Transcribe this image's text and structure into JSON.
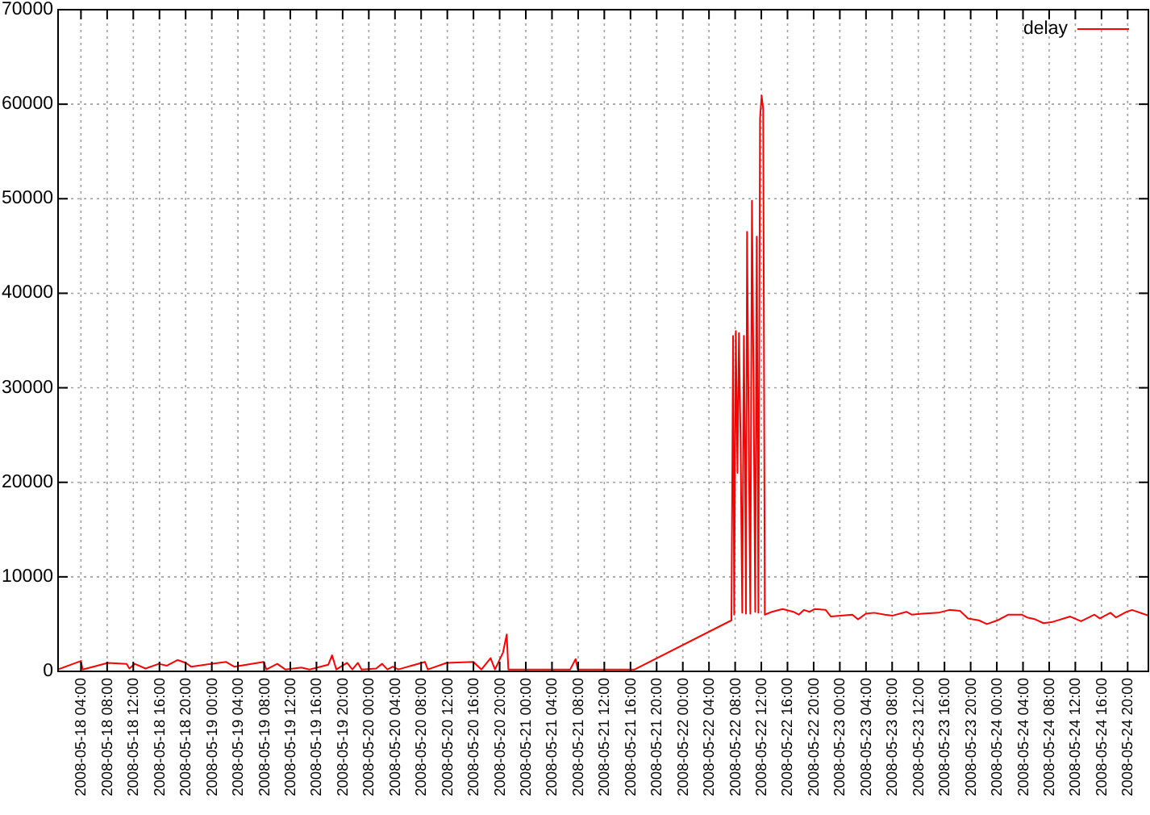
{
  "chart_data": {
    "type": "line",
    "x": [
      "2008-05-18T00:30",
      "2008-05-18T04:00",
      "2008-05-18T04:15",
      "2008-05-18T08:07",
      "2008-05-18T10:59",
      "2008-05-18T11:24",
      "2008-05-18T12:13",
      "2008-05-18T13:52",
      "2008-05-18T15:55",
      "2008-05-18T17:08",
      "2008-05-18T18:47",
      "2008-05-18T20:02",
      "2008-05-18T20:50",
      "2008-05-19T02:11",
      "2008-05-19T03:25",
      "2008-05-19T07:56",
      "2008-05-19T08:21",
      "2008-05-19T10:00",
      "2008-05-19T11:14",
      "2008-05-19T13:42",
      "2008-05-19T14:56",
      "2008-05-19T17:48",
      "2008-05-19T18:23",
      "2008-05-19T19:02",
      "2008-05-19T20:41",
      "2008-05-19T21:29",
      "2008-05-19T22:20",
      "2008-05-19T22:54",
      "2008-05-20T01:07",
      "2008-05-20T02:02",
      "2008-05-20T02:50",
      "2008-05-20T03:40",
      "2008-05-20T04:30",
      "2008-05-20T08:35",
      "2008-05-20T09:01",
      "2008-05-20T11:53",
      "2008-05-20T15:59",
      "2008-05-20T17:13",
      "2008-05-20T18:37",
      "2008-05-20T19:17",
      "2008-05-20T20:31",
      "2008-05-20T21:05",
      "2008-05-20T21:20",
      "2008-05-21T01:02",
      "2008-05-21T06:47",
      "2008-05-21T07:37",
      "2008-05-21T07:56",
      "2008-05-21T12:08",
      "2008-05-21T16:38",
      "2008-05-22T07:26",
      "2008-05-22T07:41",
      "2008-05-22T07:51",
      "2008-05-22T08:06",
      "2008-05-22T08:21",
      "2008-05-22T08:35",
      "2008-05-22T08:50",
      "2008-05-22T09:05",
      "2008-05-22T09:20",
      "2008-05-22T09:30",
      "2008-05-22T09:39",
      "2008-05-22T09:49",
      "2008-05-22T10:04",
      "2008-05-22T10:19",
      "2008-05-22T10:34",
      "2008-05-22T10:49",
      "2008-05-22T11:04",
      "2008-05-22T11:18",
      "2008-05-22T11:33",
      "2008-05-22T11:48",
      "2008-05-22T12:03",
      "2008-05-22T12:17",
      "2008-05-22T12:32",
      "2008-05-22T13:36",
      "2008-05-22T15:15",
      "2008-05-22T16:54",
      "2008-05-22T17:43",
      "2008-05-22T18:32",
      "2008-05-22T19:22",
      "2008-05-22T20:11",
      "2008-05-22T21:50",
      "2008-05-22T22:38",
      "2008-05-23T01:55",
      "2008-05-23T02:46",
      "2008-05-23T03:59",
      "2008-05-23T05:14",
      "2008-05-23T06:52",
      "2008-05-23T08:05",
      "2008-05-23T10:10",
      "2008-05-23T10:59",
      "2008-05-23T12:38",
      "2008-05-23T15:05",
      "2008-05-23T16:43",
      "2008-05-23T18:22",
      "2008-05-23T19:36",
      "2008-05-23T21:15",
      "2008-05-23T22:29",
      "2008-05-24T00:07",
      "2008-05-24T01:46",
      "2008-05-24T03:49",
      "2008-05-24T04:39",
      "2008-05-24T05:53",
      "2008-05-24T07:07",
      "2008-05-24T08:21",
      "2008-05-24T11:13",
      "2008-05-24T12:52",
      "2008-05-24T14:55",
      "2008-05-24T15:44",
      "2008-05-24T17:22",
      "2008-05-24T18:13",
      "2008-05-24T19:50",
      "2008-05-24T20:40",
      "2008-05-24T22:18",
      "2008-05-24T23:10"
    ],
    "series": [
      {
        "name": "delay",
        "color": "#ff0000",
        "values": [
          200,
          1100,
          200,
          900,
          800,
          300,
          800,
          300,
          800,
          600,
          1200,
          900,
          500,
          1000,
          500,
          1000,
          200,
          800,
          200,
          400,
          200,
          700,
          1700,
          200,
          900,
          200,
          900,
          200,
          300,
          800,
          200,
          500,
          200,
          1000,
          200,
          900,
          1000,
          200,
          1400,
          200,
          2000,
          3900,
          200,
          200,
          200,
          1300,
          200,
          200,
          200,
          5400,
          35500,
          6000,
          36000,
          21000,
          35800,
          24000,
          6200,
          35500,
          23000,
          6100,
          46500,
          26000,
          6100,
          49800,
          30000,
          6300,
          46000,
          6200,
          58500,
          60900,
          59500,
          6000,
          6300,
          6600,
          6300,
          6000,
          6500,
          6300,
          6600,
          6500,
          5800,
          6000,
          5500,
          6100,
          6200,
          6000,
          5900,
          6300,
          6000,
          6100,
          6200,
          6500,
          6400,
          5600,
          5400,
          5000,
          5400,
          6000,
          6000,
          5700,
          5500,
          5100,
          5200,
          5800,
          5300,
          6000,
          5600,
          6200,
          5700,
          6300,
          6500,
          6100,
          5900
        ]
      }
    ],
    "xlim": [
      "2008-05-18T00:30",
      "2008-05-24T23:10"
    ],
    "xticks": [
      {
        "value": "2008-05-18T04:00",
        "label": "2008-05-18 04:00"
      },
      {
        "value": "2008-05-18T08:00",
        "label": "2008-05-18 08:00"
      },
      {
        "value": "2008-05-18T12:00",
        "label": "2008-05-18 12:00"
      },
      {
        "value": "2008-05-18T16:00",
        "label": "2008-05-18 16:00"
      },
      {
        "value": "2008-05-18T20:00",
        "label": "2008-05-18 20:00"
      },
      {
        "value": "2008-05-19T00:00",
        "label": "2008-05-19 00:00"
      },
      {
        "value": "2008-05-19T04:00",
        "label": "2008-05-19 04:00"
      },
      {
        "value": "2008-05-19T08:00",
        "label": "2008-05-19 08:00"
      },
      {
        "value": "2008-05-19T12:00",
        "label": "2008-05-19 12:00"
      },
      {
        "value": "2008-05-19T16:00",
        "label": "2008-05-19 16:00"
      },
      {
        "value": "2008-05-19T20:00",
        "label": "2008-05-19 20:00"
      },
      {
        "value": "2008-05-20T00:00",
        "label": "2008-05-20 00:00"
      },
      {
        "value": "2008-05-20T04:00",
        "label": "2008-05-20 04:00"
      },
      {
        "value": "2008-05-20T08:00",
        "label": "2008-05-20 08:00"
      },
      {
        "value": "2008-05-20T12:00",
        "label": "2008-05-20 12:00"
      },
      {
        "value": "2008-05-20T16:00",
        "label": "2008-05-20 16:00"
      },
      {
        "value": "2008-05-20T20:00",
        "label": "2008-05-20 20:00"
      },
      {
        "value": "2008-05-21T00:00",
        "label": "2008-05-21 00:00"
      },
      {
        "value": "2008-05-21T04:00",
        "label": "2008-05-21 04:00"
      },
      {
        "value": "2008-05-21T08:00",
        "label": "2008-05-21 08:00"
      },
      {
        "value": "2008-05-21T12:00",
        "label": "2008-05-21 12:00"
      },
      {
        "value": "2008-05-21T16:00",
        "label": "2008-05-21 16:00"
      },
      {
        "value": "2008-05-21T20:00",
        "label": "2008-05-21 20:00"
      },
      {
        "value": "2008-05-22T00:00",
        "label": "2008-05-22 00:00"
      },
      {
        "value": "2008-05-22T04:00",
        "label": "2008-05-22 04:00"
      },
      {
        "value": "2008-05-22T08:00",
        "label": "2008-05-22 08:00"
      },
      {
        "value": "2008-05-22T12:00",
        "label": "2008-05-22 12:00"
      },
      {
        "value": "2008-05-22T16:00",
        "label": "2008-05-22 16:00"
      },
      {
        "value": "2008-05-22T20:00",
        "label": "2008-05-22 20:00"
      },
      {
        "value": "2008-05-23T00:00",
        "label": "2008-05-23 00:00"
      },
      {
        "value": "2008-05-23T04:00",
        "label": "2008-05-23 04:00"
      },
      {
        "value": "2008-05-23T08:00",
        "label": "2008-05-23 08:00"
      },
      {
        "value": "2008-05-23T12:00",
        "label": "2008-05-23 12:00"
      },
      {
        "value": "2008-05-23T16:00",
        "label": "2008-05-23 16:00"
      },
      {
        "value": "2008-05-23T20:00",
        "label": "2008-05-23 20:00"
      },
      {
        "value": "2008-05-24T00:00",
        "label": "2008-05-24 00:00"
      },
      {
        "value": "2008-05-24T04:00",
        "label": "2008-05-24 04:00"
      },
      {
        "value": "2008-05-24T08:00",
        "label": "2008-05-24 08:00"
      },
      {
        "value": "2008-05-24T12:00",
        "label": "2008-05-24 12:00"
      },
      {
        "value": "2008-05-24T16:00",
        "label": "2008-05-24 16:00"
      },
      {
        "value": "2008-05-24T20:00",
        "label": "2008-05-24 20:00"
      }
    ],
    "ylim": [
      0,
      70000
    ],
    "yticks": [
      0,
      10000,
      20000,
      30000,
      40000,
      50000,
      60000,
      70000
    ],
    "grid": true,
    "legend": "top right"
  }
}
